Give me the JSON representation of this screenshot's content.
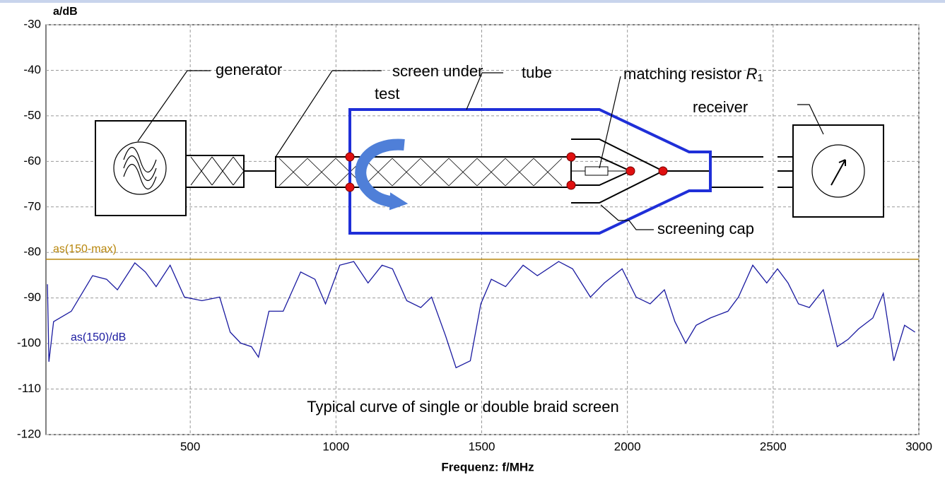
{
  "chart_data": {
    "type": "line",
    "y_axis_label": "a/dB",
    "x_axis_label": "Frequenz: f/MHz",
    "caption": "Typical curve of single or double braid screen",
    "xlim": [
      0,
      3000
    ],
    "xticks": [
      500,
      1000,
      1500,
      2000,
      2500,
      3000
    ],
    "ylim": [
      -120,
      -30
    ],
    "yticks": [
      -120,
      -110,
      -100,
      -90,
      -80,
      -70,
      -60,
      -50,
      -40,
      -30
    ],
    "grid": true,
    "reference_lines": [
      {
        "label": "as(150-max)",
        "value": -81.5,
        "color": "#b8860b"
      }
    ],
    "x": [
      10,
      15,
      31,
      92,
      165,
      213,
      250,
      310,
      346,
      383,
      431,
      480,
      540,
      601,
      637,
      673,
      710,
      734,
      770,
      819,
      879,
      928,
      964,
      1013,
      1061,
      1110,
      1158,
      1194,
      1243,
      1291,
      1328,
      1376,
      1412,
      1461,
      1497,
      1533,
      1582,
      1642,
      1691,
      1764,
      1812,
      1873,
      1921,
      1982,
      2030,
      2078,
      2127,
      2163,
      2200,
      2236,
      2284,
      2345,
      2381,
      2430,
      2478,
      2515,
      2551,
      2587,
      2624,
      2672,
      2720,
      2757,
      2793,
      2842,
      2878,
      2914,
      2951,
      2987
    ],
    "series": [
      {
        "name": "as(150)/dB",
        "color": "#1a1aa0",
        "values": [
          -87,
          -104,
          -95.2,
          -92.9,
          -85.1,
          -85.9,
          -88.2,
          -82.3,
          -84.3,
          -87.5,
          -82.8,
          -89.8,
          -90.6,
          -89.8,
          -97.5,
          -99.9,
          -100.7,
          -103,
          -92.9,
          -92.9,
          -84.3,
          -85.9,
          -91.3,
          -82.8,
          -82,
          -86.7,
          -82.8,
          -83.6,
          -90.6,
          -92.1,
          -89.8,
          -98.3,
          -105.3,
          -103.8,
          -91.3,
          -85.9,
          -87.5,
          -82.8,
          -85.1,
          -82,
          -83.6,
          -89.8,
          -86.7,
          -83.6,
          -89.8,
          -91.3,
          -88.2,
          -95.2,
          -99.9,
          -96,
          -94.4,
          -92.9,
          -89.8,
          -82.8,
          -86.7,
          -83.6,
          -86.7,
          -91.3,
          -92.1,
          -88.2,
          -100.7,
          -99.1,
          -96.8,
          -94.4,
          -89,
          -103.8,
          -96,
          -97.5
        ]
      }
    ],
    "diagram_labels": {
      "generator": "generator",
      "screen_under_test": [
        "screen under",
        "test"
      ],
      "tube": "tube",
      "matching_resistor": {
        "text": "matching resistor",
        "symbol": "R",
        "subscript": "1"
      },
      "receiver": "receiver",
      "screening_cap": "screening cap"
    }
  }
}
